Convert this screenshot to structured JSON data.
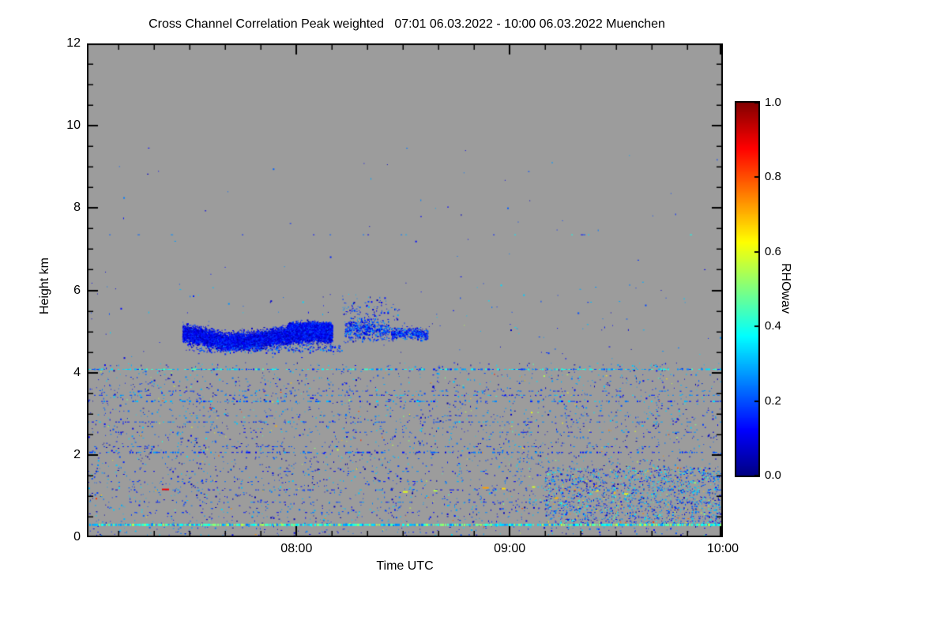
{
  "page": {
    "background": "#ffffff"
  },
  "chart_data": {
    "type": "heatmap",
    "title": "Cross Channel Correlation Peak weighted   07:01 06.03.2022 - 10:00 06.03.2022 Muenchen",
    "xlabel": "Time UTC",
    "ylabel": "Height km",
    "x_range_labels": [
      "07:01",
      "10:00"
    ],
    "x_span_minutes": 179,
    "x_ticks": [
      {
        "minute": 59,
        "label": "08:00"
      },
      {
        "minute": 119,
        "label": "09:00"
      },
      {
        "minute": 179,
        "label": "10:00"
      }
    ],
    "x_minor_step_minutes": 10,
    "ylim": [
      0,
      12
    ],
    "y_ticks": [
      0,
      2,
      4,
      6,
      8,
      10,
      12
    ],
    "y_minor_step": 0.5,
    "zlim": [
      0,
      1
    ],
    "grid": false,
    "background_color": "#9c9c9c",
    "colormap": "jet",
    "colorbar": {
      "label": "RHOwav",
      "ticks": [
        {
          "value": 1.0,
          "label": "1.0"
        },
        {
          "value": 0.8,
          "label": "0.8"
        },
        {
          "value": 0.6,
          "label": "0.6"
        },
        {
          "value": 0.4,
          "label": "0.4"
        },
        {
          "value": 0.2,
          "label": "0.2"
        },
        {
          "value": 0.0,
          "label": "0.0"
        }
      ]
    },
    "seed": 1337,
    "summary": "Dense low-correlation (dark blue) cloud layer near 4.6-5.3 km between ~07:30 and ~08:35; speckled boundary-layer returns below ~4.2 km; persistent thin aerosol lines near 0.3 km and 4.1 km; enhanced speckle in lowest 1.7 km after ~09:10; sparse specks near 7.35 km; gray = no data.",
    "features": {
      "speckle_layers": [
        {
          "t": [
            0.0,
            1.0
          ],
          "h": [
            0.05,
            4.25
          ],
          "count": 3500,
          "values": [
            0.03,
            0.35
          ],
          "hot_fraction": 0.05,
          "hot_values": [
            0.4,
            0.85
          ]
        },
        {
          "t": [
            0.72,
            1.0
          ],
          "h": [
            0.3,
            1.7
          ],
          "count": 1500,
          "values": [
            0.05,
            0.4
          ],
          "hot_fraction": 0.09,
          "hot_values": [
            0.45,
            0.8
          ]
        },
        {
          "t": [
            0.0,
            1.0
          ],
          "h": [
            4.35,
            6.2
          ],
          "count": 140,
          "values": [
            0.05,
            0.35
          ],
          "hot_fraction": 0.02,
          "hot_values": [
            0.4,
            0.6
          ]
        },
        {
          "t": [
            0.0,
            1.0
          ],
          "h": [
            6.2,
            9.5
          ],
          "count": 50,
          "values": [
            0.05,
            0.3
          ],
          "hot_fraction": 0.0,
          "hot_values": [
            0.4,
            0.6
          ]
        }
      ],
      "bands": [
        {
          "h": 0.3,
          "t": [
            0.0,
            1.0
          ],
          "coverage": 0.97,
          "values": [
            0.25,
            0.55
          ],
          "thickness": 3
        },
        {
          "h": 4.08,
          "t": [
            0.0,
            1.0
          ],
          "coverage": 0.72,
          "values": [
            0.15,
            0.45
          ],
          "thickness": 2
        },
        {
          "h": 2.06,
          "t": [
            0.0,
            1.0
          ],
          "coverage": 0.45,
          "values": [
            0.08,
            0.3
          ],
          "thickness": 2
        },
        {
          "h": 2.2,
          "t": [
            0.0,
            0.9
          ],
          "coverage": 0.2,
          "values": [
            0.08,
            0.3
          ],
          "thickness": 1
        },
        {
          "h": 3.3,
          "t": [
            0.0,
            1.0
          ],
          "coverage": 0.4,
          "values": [
            0.1,
            0.35
          ],
          "thickness": 2
        },
        {
          "h": 3.45,
          "t": [
            0.0,
            1.0
          ],
          "coverage": 0.35,
          "values": [
            0.1,
            0.35
          ],
          "thickness": 1
        },
        {
          "h": 3.55,
          "t": [
            0.05,
            1.0
          ],
          "coverage": 0.25,
          "values": [
            0.1,
            0.3
          ],
          "thickness": 1
        },
        {
          "h": 2.8,
          "t": [
            0.0,
            1.0
          ],
          "coverage": 0.35,
          "values": [
            0.08,
            0.35
          ],
          "thickness": 1
        },
        {
          "h": 2.95,
          "t": [
            0.1,
            1.0
          ],
          "coverage": 0.2,
          "values": [
            0.08,
            0.3
          ],
          "thickness": 1
        },
        {
          "h": 2.55,
          "t": [
            0.0,
            1.0
          ],
          "coverage": 0.2,
          "values": [
            0.08,
            0.3
          ],
          "thickness": 1
        },
        {
          "h": 1.6,
          "t": [
            0.0,
            1.0
          ],
          "coverage": 0.18,
          "values": [
            0.08,
            0.3
          ],
          "thickness": 1
        },
        {
          "h": 1.35,
          "t": [
            0.0,
            1.0
          ],
          "coverage": 0.15,
          "values": [
            0.08,
            0.3
          ],
          "thickness": 1
        },
        {
          "h": 1.15,
          "t": [
            0.0,
            1.0
          ],
          "coverage": 0.2,
          "values": [
            0.08,
            0.35
          ],
          "thickness": 1
        },
        {
          "h": 0.85,
          "t": [
            0.0,
            1.0
          ],
          "coverage": 0.18,
          "values": [
            0.08,
            0.3
          ],
          "thickness": 1
        },
        {
          "h": 0.6,
          "t": [
            0.0,
            1.0
          ],
          "coverage": 0.15,
          "values": [
            0.08,
            0.3
          ],
          "thickness": 1
        },
        {
          "h": 7.35,
          "t": [
            0.02,
            1.0
          ],
          "coverage": 0.08,
          "values": [
            0.1,
            0.4
          ],
          "thickness": 1
        }
      ],
      "clouds": [
        {
          "profile": [
            [
              0.15,
              4.95
            ],
            [
              0.185,
              4.88
            ],
            [
              0.215,
              4.76
            ],
            [
              0.255,
              4.78
            ],
            [
              0.295,
              4.88
            ],
            [
              0.33,
              4.93
            ],
            [
              0.36,
              4.97
            ],
            [
              0.385,
              4.93
            ]
          ],
          "thickness": 0.17,
          "count": 9000,
          "values": [
            0.03,
            0.2
          ]
        },
        {
          "profile": [
            [
              0.315,
              5.08
            ],
            [
              0.345,
              5.12
            ],
            [
              0.385,
              5.08
            ]
          ],
          "thickness": 0.11,
          "count": 2200,
          "values": [
            0.04,
            0.22
          ]
        },
        {
          "profile": [
            [
              0.405,
              5.05
            ],
            [
              0.44,
              5.1
            ],
            [
              0.475,
              5.0
            ]
          ],
          "thickness": 0.22,
          "count": 550,
          "values": [
            0.05,
            0.3
          ]
        },
        {
          "profile": [
            [
              0.478,
              4.95
            ],
            [
              0.51,
              4.98
            ],
            [
              0.535,
              4.92
            ]
          ],
          "thickness": 0.11,
          "count": 420,
          "values": [
            0.05,
            0.28
          ]
        },
        {
          "profile": [
            [
              0.16,
              4.6
            ],
            [
              0.28,
              4.58
            ],
            [
              0.4,
              4.62
            ]
          ],
          "thickness": 0.09,
          "count": 260,
          "values": [
            0.05,
            0.3
          ]
        },
        {
          "profile": [
            [
              0.4,
              5.5
            ],
            [
              0.45,
              5.6
            ],
            [
              0.49,
              5.45
            ]
          ],
          "thickness": 0.25,
          "count": 90,
          "values": [
            0.05,
            0.3
          ]
        }
      ],
      "marks": [
        {
          "f": 0.118,
          "h": 1.16,
          "w": 9,
          "value": 0.88
        },
        {
          "f": 0.497,
          "h": 1.1,
          "w": 6,
          "value": 0.6
        },
        {
          "f": 0.545,
          "h": 1.13,
          "w": 5,
          "value": 0.55
        },
        {
          "f": 0.622,
          "h": 1.2,
          "w": 8,
          "value": 0.72
        },
        {
          "f": 0.652,
          "h": 1.18,
          "w": 5,
          "value": 0.66
        },
        {
          "f": 0.7,
          "h": 1.22,
          "w": 4,
          "value": 0.58
        },
        {
          "f": 0.735,
          "h": 0.95,
          "w": 5,
          "value": 0.7
        },
        {
          "f": 0.845,
          "h": 1.05,
          "w": 5,
          "value": 0.62
        }
      ]
    }
  }
}
